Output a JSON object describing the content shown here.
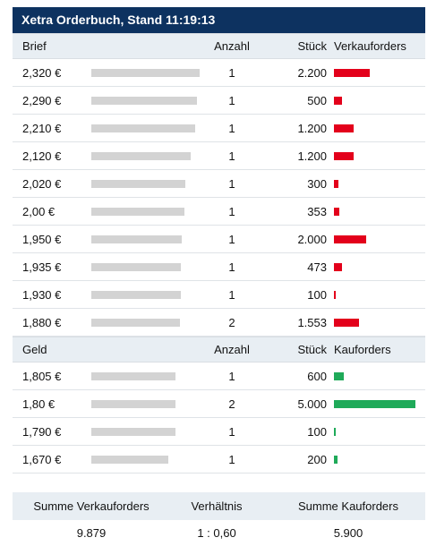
{
  "title": "Xetra Orderbuch, Stand 11:19:13",
  "sell": {
    "header": {
      "price": "Brief",
      "count": "Anzahl",
      "qty": "Stück",
      "orders": "Verkauforders"
    },
    "rows": [
      {
        "price": "2,320 €",
        "count": "1",
        "qty": "2.200",
        "depth": 0.93,
        "order": 0.44
      },
      {
        "price": "2,290 €",
        "count": "1",
        "qty": "500",
        "depth": 0.91,
        "order": 0.1
      },
      {
        "price": "2,210 €",
        "count": "1",
        "qty": "1.200",
        "depth": 0.89,
        "order": 0.24
      },
      {
        "price": "2,120 €",
        "count": "1",
        "qty": "1.200",
        "depth": 0.85,
        "order": 0.24
      },
      {
        "price": "2,020 €",
        "count": "1",
        "qty": "300",
        "depth": 0.81,
        "order": 0.06
      },
      {
        "price": "2,00 €",
        "count": "1",
        "qty": "353",
        "depth": 0.8,
        "order": 0.07
      },
      {
        "price": "1,950 €",
        "count": "1",
        "qty": "2.000",
        "depth": 0.78,
        "order": 0.4
      },
      {
        "price": "1,935 €",
        "count": "1",
        "qty": "473",
        "depth": 0.77,
        "order": 0.1
      },
      {
        "price": "1,930 €",
        "count": "1",
        "qty": "100",
        "depth": 0.77,
        "order": 0.02
      },
      {
        "price": "1,880 €",
        "count": "2",
        "qty": "1.553",
        "depth": 0.76,
        "order": 0.31
      }
    ]
  },
  "buy": {
    "header": {
      "price": "Geld",
      "count": "Anzahl",
      "qty": "Stück",
      "orders": "Kauforders"
    },
    "rows": [
      {
        "price": "1,805 €",
        "count": "1",
        "qty": "600",
        "depth": 0.72,
        "order": 0.12
      },
      {
        "price": "1,80 €",
        "count": "2",
        "qty": "5.000",
        "depth": 0.72,
        "order": 1.0
      },
      {
        "price": "1,790 €",
        "count": "1",
        "qty": "100",
        "depth": 0.72,
        "order": 0.02
      },
      {
        "price": "1,670 €",
        "count": "1",
        "qty": "200",
        "depth": 0.66,
        "order": 0.04
      }
    ]
  },
  "summary": {
    "sell_label": "Summe Verkauforders",
    "ratio_label": "Verhältnis",
    "buy_label": "Summe Kauforders",
    "sell_value": "9.879",
    "ratio_value": "1 : 0,60",
    "buy_value": "5.900"
  },
  "colors": {
    "title_bg": "#0d3260",
    "sell": "#e3001b",
    "buy": "#1faa59",
    "depth": "#d3d3d3",
    "header_bg": "#e8eef3"
  }
}
